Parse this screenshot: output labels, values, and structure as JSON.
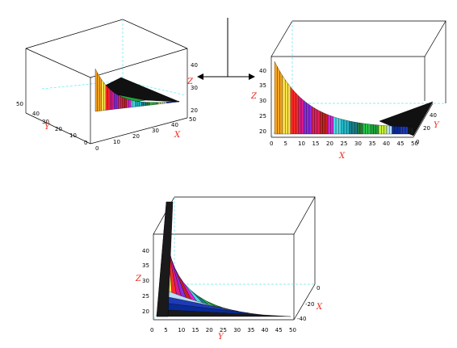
{
  "chart_data": [
    {
      "type": "surface3d",
      "view": "top-left",
      "axes": {
        "x": {
          "label": "X",
          "ticks": [
            "0",
            "10",
            "20",
            "30",
            "40",
            "50"
          ]
        },
        "y": {
          "label": "Y",
          "ticks": [
            "0",
            "10",
            "20",
            "30",
            "40",
            "50"
          ]
        },
        "z": {
          "label": "Z",
          "ticks": [
            "20",
            "30",
            "40"
          ]
        }
      },
      "zlim": [
        18,
        42
      ]
    },
    {
      "type": "surface3d",
      "view": "top-right",
      "axes": {
        "x": {
          "label": "X",
          "ticks": [
            "0",
            "5",
            "10",
            "15",
            "20",
            "25",
            "30",
            "35",
            "40",
            "45",
            "50"
          ]
        },
        "y": {
          "label": "Y",
          "ticks": [
            "0",
            "20",
            "40"
          ]
        },
        "z": {
          "label": "Z",
          "ticks": [
            "20",
            "25",
            "30",
            "35",
            "40"
          ]
        }
      },
      "zlim": [
        18,
        42
      ]
    },
    {
      "type": "surface3d",
      "view": "bottom-center",
      "axes": {
        "x": {
          "label": "X",
          "ticks": [
            "0",
            "-20",
            "-40"
          ]
        },
        "y": {
          "label": "Y",
          "ticks": [
            "0",
            "5",
            "10",
            "15",
            "20",
            "25",
            "30",
            "35",
            "40",
            "45",
            "50"
          ]
        },
        "z": {
          "label": "Z",
          "ticks": [
            "20",
            "25",
            "30",
            "35",
            "40"
          ]
        }
      },
      "zlim": [
        18,
        42
      ]
    }
  ],
  "colors": {
    "bands": [
      "#f5a623",
      "#ffe34d",
      "#ff2a2a",
      "#d91a8a",
      "#8b2be2",
      "#e11f5a",
      "#c82020",
      "#e01fd8",
      "#4cd9e6",
      "#20b8c8",
      "#1a7f8a",
      "#2a7a3a",
      "#27c44a",
      "#1fa23a",
      "#c9f03a",
      "#b7dff5",
      "#0a2a9a",
      "#1d3ab8",
      "#1a1a1a"
    ],
    "axis_label": "#e8251b",
    "dashed": "#66e6ee"
  },
  "arrow_icon": "double-arrow-icon"
}
